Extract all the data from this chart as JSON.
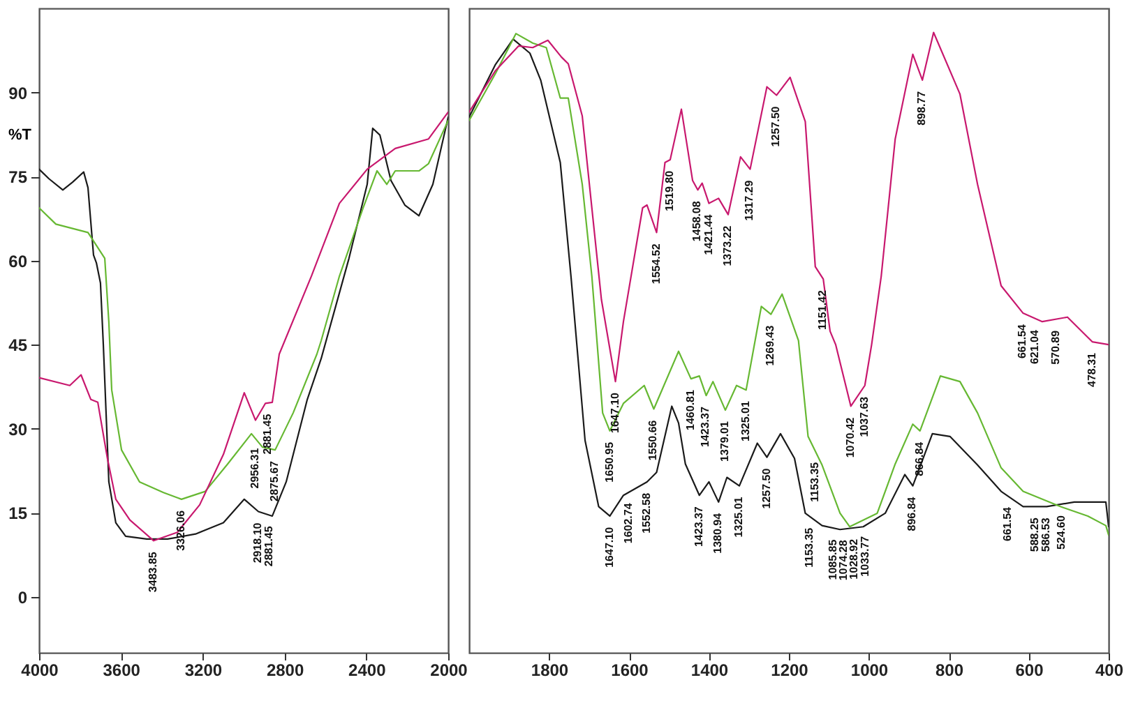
{
  "chart_data": [
    {
      "type": "line",
      "ylabel": "%T",
      "xlim": [
        4000,
        2000
      ],
      "xticks": [
        4000,
        3600,
        3200,
        2800,
        2400,
        2000
      ],
      "ylim": [
        -10,
        105
      ],
      "yticks": [
        0,
        15,
        30,
        45,
        60,
        75,
        90
      ],
      "series": [
        {
          "color": "#1a1a1a",
          "x": [
            4000,
            3952,
            3884,
            3836,
            3782,
            3761,
            3734,
            3720,
            3700,
            3686,
            3659,
            3625,
            3577,
            3474,
            3372,
            3235,
            3099,
            2997,
            2928,
            2860,
            2792,
            2689,
            2621,
            2485,
            2396,
            2369,
            2334,
            2280,
            2212,
            2143,
            2075,
            2000
          ],
          "values": [
            76.3,
            74.6,
            72.6,
            74,
            75.8,
            73,
            61,
            59.6,
            56,
            45,
            20.5,
            13.2,
            10.8,
            10.3,
            10.3,
            11.2,
            13.2,
            17.4,
            15.2,
            14.4,
            20.5,
            35.2,
            42.5,
            60.4,
            73.6,
            83.6,
            82.4,
            74.3,
            69.9,
            68,
            73.6,
            85.6
          ]
        },
        {
          "color": "#66b832",
          "x": [
            4000,
            3918,
            3761,
            3679,
            3659,
            3645,
            3597,
            3509,
            3392,
            3304,
            3188,
            3078,
            2962,
            2908,
            2846,
            2758,
            2642,
            2621,
            2532,
            2416,
            2348,
            2300,
            2259,
            2143,
            2096,
            2000
          ],
          "values": [
            69.4,
            66.5,
            65,
            60.4,
            49,
            36.9,
            26.2,
            20.5,
            18.6,
            17.4,
            18.8,
            23.7,
            29.1,
            26.7,
            26.2,
            32.8,
            43.3,
            45.7,
            57.2,
            69.4,
            76,
            73.6,
            76,
            76,
            77.3,
            85
          ]
        },
        {
          "color": "#c8186e",
          "x": [
            4000,
            3850,
            3795,
            3747,
            3713,
            3666,
            3625,
            3556,
            3440,
            3324,
            3215,
            3099,
            2997,
            2942,
            2894,
            2860,
            2826,
            2669,
            2532,
            2396,
            2259,
            2096,
            2000
          ],
          "values": [
            39.1,
            37.7,
            39.6,
            35.2,
            34.7,
            24.7,
            17.4,
            13.7,
            10,
            11.5,
            16.4,
            25.4,
            36.4,
            31.5,
            34.5,
            34.7,
            43.3,
            57.2,
            70.2,
            76.3,
            80,
            81.7,
            86.5
          ]
        }
      ],
      "annotations": [
        {
          "text": "3483.85",
          "x": 3440,
          "y": 10
        },
        {
          "text": "3326.06",
          "x": 3304,
          "y": 17.4
        },
        {
          "text": "2956.31",
          "x": 2942,
          "y": 28.5
        },
        {
          "text": "2881.45",
          "x": 2881,
          "y": 34.6
        },
        {
          "text": "2875.67",
          "x": 2846,
          "y": 26.2
        },
        {
          "text": "2918.10",
          "x": 2928,
          "y": 15.2
        },
        {
          "text": "2881.45",
          "x": 2874,
          "y": 14.6
        }
      ]
    },
    {
      "type": "line",
      "tick_labels": "x",
      "xlim": [
        2000,
        400
      ],
      "xticks": [
        1800,
        1600,
        1400,
        1200,
        1000,
        800,
        600,
        400
      ],
      "ylim": [
        -10,
        105
      ],
      "series": [
        {
          "color": "#1a1a1a",
          "x": [
            2000,
            1934,
            1890,
            1848,
            1821,
            1772,
            1745,
            1710,
            1676,
            1648,
            1614,
            1555,
            1531,
            1493,
            1476,
            1459,
            1424,
            1400,
            1376,
            1355,
            1324,
            1279,
            1255,
            1221,
            1186,
            1159,
            1117,
            1072,
            1014,
            959,
            910,
            890,
            841,
            797,
            728,
            669,
            614,
            555,
            486,
            407,
            400
          ],
          "values": [
            85.6,
            95,
            99.5,
            97,
            92.2,
            77.5,
            57,
            27.9,
            16.1,
            14.4,
            18.1,
            20.5,
            22.2,
            34,
            31,
            23.7,
            18.1,
            20.5,
            16.9,
            21.3,
            19.8,
            27.4,
            24.9,
            29.1,
            24.7,
            14.9,
            12.7,
            12,
            12.5,
            14.9,
            21.8,
            19.8,
            29.1,
            28.6,
            23.5,
            18.8,
            16.1,
            16.1,
            16.9,
            16.9,
            12.5
          ]
        },
        {
          "color": "#66b832",
          "x": [
            2000,
            1934,
            1883,
            1841,
            1807,
            1772,
            1752,
            1717,
            1693,
            1666,
            1648,
            1614,
            1562,
            1538,
            1476,
            1445,
            1424,
            1407,
            1390,
            1359,
            1331,
            1307,
            1269,
            1245,
            1217,
            1176,
            1152,
            1117,
            1072,
            1048,
            979,
            934,
            890,
            872,
            821,
            772,
            728,
            669,
            614,
            521,
            452,
            407,
            400
          ],
          "values": [
            85,
            93.4,
            100.5,
            98.8,
            98,
            89,
            89,
            73.6,
            57.2,
            32.8,
            29.6,
            34.5,
            37.7,
            33.5,
            43.8,
            38.9,
            39.4,
            35.9,
            38.4,
            33.3,
            37.7,
            36.9,
            51.8,
            50.4,
            54,
            45.7,
            28.6,
            23.5,
            14.9,
            12.5,
            14.9,
            23.7,
            30.8,
            29.6,
            39.4,
            38.4,
            32.8,
            23,
            18.8,
            16.1,
            14.4,
            12.7,
            11
          ]
        },
        {
          "color": "#c8186e",
          "x": [
            2000,
            1934,
            1876,
            1841,
            1803,
            1769,
            1752,
            1717,
            1693,
            1669,
            1634,
            1614,
            1566,
            1555,
            1531,
            1510,
            1497,
            1469,
            1441,
            1428,
            1417,
            1400,
            1376,
            1352,
            1321,
            1297,
            1255,
            1231,
            1197,
            1159,
            1134,
            1114,
            1097,
            1083,
            1045,
            1010,
            993,
            969,
            934,
            890,
            866,
            838,
            772,
            728,
            669,
            614,
            566,
            503,
            441,
            400
          ],
          "values": [
            86.5,
            93.9,
            98.3,
            98,
            99.3,
            96.3,
            95.1,
            85.8,
            69.4,
            53,
            38.4,
            49.1,
            69.4,
            69.9,
            65,
            77.5,
            78,
            87,
            74.3,
            72.6,
            73.8,
            70.2,
            71.1,
            68.2,
            78.5,
            76.3,
            91,
            89.5,
            92.7,
            84.8,
            58.9,
            56.7,
            47.4,
            45,
            34,
            37.7,
            45,
            57.2,
            81.7,
            96.8,
            92.2,
            100.7,
            89.7,
            73.6,
            55.5,
            50.6,
            49.1,
            49.9,
            45.5,
            45
          ]
        }
      ],
      "annotations": [
        {
          "text": "1647.10",
          "x": 1648,
          "y": 14.4
        },
        {
          "text": "1650.95",
          "x": 1648,
          "y": 29.6
        },
        {
          "text": "1647.10",
          "x": 1634,
          "y": 38.4
        },
        {
          "text": "1602.74",
          "x": 1600,
          "y": 18.7
        },
        {
          "text": "1552.58",
          "x": 1555,
          "y": 20.5
        },
        {
          "text": "1550.66",
          "x": 1538,
          "y": 33.5
        },
        {
          "text": "1460.81",
          "x": 1445,
          "y": 38.9
        },
        {
          "text": "1423.37",
          "x": 1407,
          "y": 35.9
        },
        {
          "text": "1423.37",
          "x": 1424,
          "y": 18.1
        },
        {
          "text": "1379.01",
          "x": 1359,
          "y": 33.3
        },
        {
          "text": "1380.94",
          "x": 1376,
          "y": 16.9
        },
        {
          "text": "1325.01",
          "x": 1307,
          "y": 36.9
        },
        {
          "text": "1325.01",
          "x": 1324,
          "y": 19.8
        },
        {
          "text": "1257.50",
          "x": 1255,
          "y": 24.9
        },
        {
          "text": "1269.43",
          "x": 1245,
          "y": 50.4
        },
        {
          "text": "1153.35",
          "x": 1134,
          "y": 26
        },
        {
          "text": "1153.35",
          "x": 1148,
          "y": 14.3
        },
        {
          "text": "1085.85",
          "x": 1088,
          "y": 12.2
        },
        {
          "text": "1074.28",
          "x": 1062,
          "y": 12.1
        },
        {
          "text": "1028.92",
          "x": 1035,
          "y": 12.3
        },
        {
          "text": "1033.77",
          "x": 1008,
          "y": 12.8
        },
        {
          "text": "1070.42",
          "x": 1045,
          "y": 34
        },
        {
          "text": "1037.63",
          "x": 1010,
          "y": 37.7
        },
        {
          "text": "896.84",
          "x": 890,
          "y": 19.8
        },
        {
          "text": "866.84",
          "x": 872,
          "y": 29.6
        },
        {
          "text": "661.54",
          "x": 652,
          "y": 18
        },
        {
          "text": "588.25",
          "x": 583,
          "y": 16.1
        },
        {
          "text": "586.53",
          "x": 555,
          "y": 16.1
        },
        {
          "text": "524.60",
          "x": 517,
          "y": 16.5
        },
        {
          "text": "1554.52",
          "x": 1531,
          "y": 65
        },
        {
          "text": "1519.80",
          "x": 1497,
          "y": 78
        },
        {
          "text": "1458.08",
          "x": 1428,
          "y": 72.6
        },
        {
          "text": "1421.44",
          "x": 1400,
          "y": 70.2
        },
        {
          "text": "1373.22",
          "x": 1352,
          "y": 68.2
        },
        {
          "text": "1317.29",
          "x": 1297,
          "y": 76.3
        },
        {
          "text": "1257.50",
          "x": 1231,
          "y": 89.5
        },
        {
          "text": "1151.42",
          "x": 1114,
          "y": 56.7
        },
        {
          "text": "898.77",
          "x": 866,
          "y": 92.2
        },
        {
          "text": "661.54",
          "x": 614,
          "y": 50.6
        },
        {
          "text": "621.04",
          "x": 583,
          "y": 49.6
        },
        {
          "text": "570.89",
          "x": 531,
          "y": 49.5
        },
        {
          "text": "478.31",
          "x": 441,
          "y": 45.5
        }
      ]
    }
  ]
}
